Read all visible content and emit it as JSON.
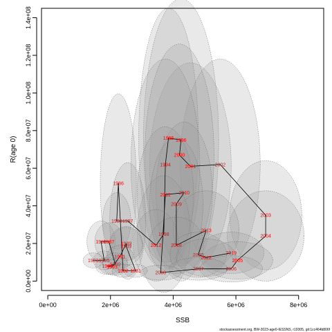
{
  "chart_data": {
    "type": "scatter",
    "title": "",
    "xlabel": "SSB",
    "ylabel": "R(age 0)",
    "xlim": [
      -200000,
      8800000
    ],
    "ylim": [
      -5000000,
      145000000
    ],
    "x_ticks": [
      0,
      2000000,
      4000000,
      6000000,
      8000000
    ],
    "x_tick_labels": [
      "0e+00",
      "2e+06",
      "4e+06",
      "6e+06",
      "8e+06"
    ],
    "y_ticks": [
      0,
      20000000,
      40000000,
      60000000,
      80000000,
      100000000,
      120000000,
      140000000
    ],
    "y_tick_labels": [
      "0.0e+00",
      "2.0e+07",
      "4.0e+07",
      "6.0e+07",
      "8.0e+07",
      "1.0e+08",
      "1.2e+08",
      "1.4e+08"
    ],
    "grid": false,
    "connected_path": true,
    "points": [
      {
        "label": "1983",
        "x": 1450000,
        "y": 11000000,
        "w": 650000,
        "h": 8000000
      },
      {
        "label": "1985",
        "x": 1800000,
        "y": 11000000,
        "w": 700000,
        "h": 10000000
      },
      {
        "label": "1990",
        "x": 1700000,
        "y": 21000000,
        "w": 900000,
        "h": 22000000
      },
      {
        "label": "1987",
        "x": 1950000,
        "y": 21000000,
        "w": 900000,
        "h": 20000000
      },
      {
        "label": "1980",
        "x": 2150000,
        "y": 9000000,
        "w": 800000,
        "h": 12000000
      },
      {
        "label": "1984",
        "x": 1900000,
        "y": 8000000,
        "w": 750000,
        "h": 9000000
      },
      {
        "label": "1993",
        "x": 2050000,
        "y": 7500000,
        "w": 800000,
        "h": 8000000
      },
      {
        "label": "1991",
        "x": 2300000,
        "y": 13000000,
        "w": 850000,
        "h": 12000000
      },
      {
        "label": "1989",
        "x": 2500000,
        "y": 20000000,
        "w": 1050000,
        "h": 18000000
      },
      {
        "label": "1999",
        "x": 2500000,
        "y": 18500000,
        "w": 1050000,
        "h": 20000000
      },
      {
        "label": "1981",
        "x": 2800000,
        "y": 5500000,
        "w": 750000,
        "h": 7000000
      },
      {
        "label": "1982",
        "x": 2400000,
        "y": 5500000,
        "w": 700000,
        "h": 7000000
      },
      {
        "label": "1986",
        "x": 2250000,
        "y": 52000000,
        "w": 1150000,
        "h": 95000000
      },
      {
        "label": "1988",
        "x": 2200000,
        "y": 32000000,
        "w": 900000,
        "h": 30000000
      },
      {
        "label": "1997",
        "x": 2550000,
        "y": 32000000,
        "w": 1150000,
        "h": 62000000
      },
      {
        "label": "2012",
        "x": 3450000,
        "y": 19000000,
        "w": 1450000,
        "h": 38000000
      },
      {
        "label": "1998",
        "x": 3700000,
        "y": 25000000,
        "w": 1700000,
        "h": 62000000
      },
      {
        "label": "2008",
        "x": 3600000,
        "y": 4500000,
        "w": 1300000,
        "h": 8000000
      },
      {
        "label": "2007",
        "x": 4800000,
        "y": 6500000,
        "w": 1850000,
        "h": 12000000
      },
      {
        "label": "2006",
        "x": 5850000,
        "y": 6500000,
        "w": 2000000,
        "h": 14000000
      },
      {
        "label": "2005",
        "x": 6050000,
        "y": 11000000,
        "w": 2250000,
        "h": 20000000
      },
      {
        "label": "2004",
        "x": 6950000,
        "y": 24000000,
        "w": 2450000,
        "h": 48000000
      },
      {
        "label": "2003",
        "x": 6950000,
        "y": 35000000,
        "w": 2300000,
        "h": 58000000
      },
      {
        "label": "2002",
        "x": 5500000,
        "y": 62000000,
        "w": 2550000,
        "h": 112000000
      },
      {
        "label": "2001",
        "x": 4550000,
        "y": 61000000,
        "w": 2600000,
        "h": 110000000
      },
      {
        "label": "2000",
        "x": 4200000,
        "y": 67000000,
        "w": 2200000,
        "h": 118000000
      },
      {
        "label": "1994",
        "x": 3750000,
        "y": 62000000,
        "w": 2200000,
        "h": 112000000
      },
      {
        "label": "1995",
        "x": 3850000,
        "y": 76000000,
        "w": 1900000,
        "h": 138000000
      },
      {
        "label": "1996",
        "x": 4250000,
        "y": 75000000,
        "w": 2400000,
        "h": 150000000
      },
      {
        "label": "2010",
        "x": 4350000,
        "y": 47000000,
        "w": 1800000,
        "h": 75000000
      },
      {
        "label": "2011",
        "x": 3750000,
        "y": 46000000,
        "w": 1800000,
        "h": 72000000
      },
      {
        "label": "2009",
        "x": 4100000,
        "y": 41000000,
        "w": 1700000,
        "h": 70000000
      },
      {
        "label": "2013",
        "x": 5050000,
        "y": 27000000,
        "w": 2100000,
        "h": 42000000
      },
      {
        "label": "2018",
        "x": 4100000,
        "y": 19000000,
        "w": 1750000,
        "h": 30000000
      },
      {
        "label": "2020",
        "x": 4800000,
        "y": 14000000,
        "w": 1800000,
        "h": 24000000
      },
      {
        "label": "2022",
        "x": 5050000,
        "y": 12500000,
        "w": 1900000,
        "h": 20000000
      },
      {
        "label": "2019",
        "x": 5850000,
        "y": 15000000,
        "w": 2100000,
        "h": 22000000
      }
    ],
    "path_order": [
      "1983",
      "1985",
      "1990",
      "1987",
      "1980",
      "1984",
      "1993",
      "1991",
      "1989",
      "1999",
      "1981",
      "1982",
      "1986",
      "1988",
      "1997",
      "2012",
      "1998",
      "1994",
      "1995",
      "1996",
      "2000",
      "2001",
      "2002",
      "2003",
      "2004",
      "2005",
      "2006",
      "2007",
      "2008",
      "2011",
      "2010",
      "2009",
      "2018",
      "2013",
      "2020",
      "2022",
      "2019"
    ],
    "colors": {
      "label": "#ff0000",
      "ellipse_fill": "#999999",
      "ellipse_stroke": "#666666",
      "line": "#000000"
    }
  },
  "footer": "stockassessment.org, BW-2023-age0-IESSNS, r19305, git:1cc464b806f"
}
